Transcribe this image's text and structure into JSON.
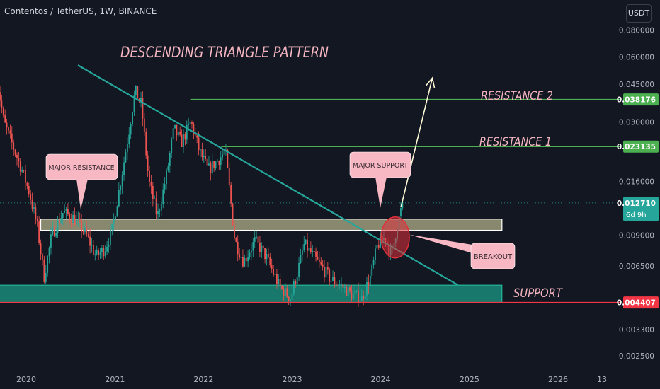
{
  "header": {
    "symbol": "Contentos / TetherUS, 1W, BINANCE",
    "currency_button": "USDT"
  },
  "colors": {
    "background": "#131722",
    "up_candle": "#26a69a",
    "down_candle": "#ef5350",
    "trendline": "#26a69a",
    "resistance_line": "#4caf50",
    "support_line": "#f23645",
    "support_zone": "#1a9a84",
    "resistance_zone": "#e9e6ad",
    "annotation_text": "#f4b6c0",
    "callout_bg": "#f7b7c3",
    "breakout_circle": "#e0303a",
    "projection_arrow": "#fffbd8",
    "last_price_badge": "#26a69a",
    "support_badge": "#f23645"
  },
  "chart_data": {
    "type": "candlestick",
    "title": "DESCENDING TRIANGLE PATTERN",
    "scale": "log",
    "ylim": [
      0.0022,
      0.11
    ],
    "xlim": [
      "2019-09-15",
      "2026-09-15"
    ],
    "y_ticks": [
      "0.080000",
      "0.060000",
      "0.045000",
      "0.030000",
      "0.016000",
      "0.009000",
      "0.006500",
      "0.003300",
      "0.002500"
    ],
    "y_tick_values": [
      0.08,
      0.06,
      0.045,
      0.03,
      0.016,
      0.009,
      0.0065,
      0.0033,
      0.0025
    ],
    "x_ticks": [
      "2020",
      "2021",
      "2022",
      "2023",
      "2024",
      "2025",
      "2026",
      "13"
    ],
    "x_tick_dates": [
      "2020-01-01",
      "2021-01-01",
      "2022-01-01",
      "2023-01-01",
      "2024-01-01",
      "2025-01-01",
      "2026-01-01",
      "2026-07-01"
    ],
    "price_path": [
      {
        "date": "2019-09-01",
        "price": 0.048
      },
      {
        "date": "2019-10-01",
        "price": 0.03
      },
      {
        "date": "2019-11-15",
        "price": 0.022
      },
      {
        "date": "2019-12-15",
        "price": 0.018
      },
      {
        "date": "2020-01-15",
        "price": 0.014
      },
      {
        "date": "2020-02-15",
        "price": 0.01
      },
      {
        "date": "2020-03-15",
        "price": 0.0058
      },
      {
        "date": "2020-04-15",
        "price": 0.009
      },
      {
        "date": "2020-06-01",
        "price": 0.0115
      },
      {
        "date": "2020-07-15",
        "price": 0.0108
      },
      {
        "date": "2020-09-01",
        "price": 0.0092
      },
      {
        "date": "2020-10-15",
        "price": 0.0072
      },
      {
        "date": "2020-11-20",
        "price": 0.0078
      },
      {
        "date": "2020-12-20",
        "price": 0.0095
      },
      {
        "date": "2021-02-01",
        "price": 0.018
      },
      {
        "date": "2021-03-01",
        "price": 0.028
      },
      {
        "date": "2021-03-25",
        "price": 0.042
      },
      {
        "date": "2021-04-20",
        "price": 0.036
      },
      {
        "date": "2021-05-20",
        "price": 0.016
      },
      {
        "date": "2021-06-25",
        "price": 0.011
      },
      {
        "date": "2021-08-01",
        "price": 0.017
      },
      {
        "date": "2021-09-01",
        "price": 0.028
      },
      {
        "date": "2021-10-01",
        "price": 0.024
      },
      {
        "date": "2021-11-10",
        "price": 0.03
      },
      {
        "date": "2021-12-15",
        "price": 0.022
      },
      {
        "date": "2022-01-20",
        "price": 0.018
      },
      {
        "date": "2022-03-01",
        "price": 0.02
      },
      {
        "date": "2022-04-01",
        "price": 0.022
      },
      {
        "date": "2022-05-10",
        "price": 0.0085
      },
      {
        "date": "2022-06-15",
        "price": 0.0068
      },
      {
        "date": "2022-08-01",
        "price": 0.0085
      },
      {
        "date": "2022-09-15",
        "price": 0.0072
      },
      {
        "date": "2022-11-10",
        "price": 0.0052
      },
      {
        "date": "2022-12-25",
        "price": 0.0046
      },
      {
        "date": "2023-01-25",
        "price": 0.0062
      },
      {
        "date": "2023-02-20",
        "price": 0.0082
      },
      {
        "date": "2023-04-15",
        "price": 0.0068
      },
      {
        "date": "2023-06-10",
        "price": 0.0056
      },
      {
        "date": "2023-07-20",
        "price": 0.0053
      },
      {
        "date": "2023-09-01",
        "price": 0.0048
      },
      {
        "date": "2023-10-15",
        "price": 0.0046
      },
      {
        "date": "2023-11-20",
        "price": 0.0058
      },
      {
        "date": "2023-12-20",
        "price": 0.0082
      },
      {
        "date": "2024-01-20",
        "price": 0.0088
      },
      {
        "date": "2024-02-15",
        "price": 0.0072
      },
      {
        "date": "2024-03-05",
        "price": 0.0095
      },
      {
        "date": "2024-03-25",
        "price": 0.0118
      },
      {
        "date": "2024-04-05",
        "price": 0.01271
      }
    ],
    "price_badges": [
      {
        "label": "0.038176",
        "value": 0.038176,
        "kind": "resistance"
      },
      {
        "label": "0.023135",
        "value": 0.023135,
        "kind": "resistance"
      },
      {
        "label": "0.012710",
        "value": 0.01271,
        "kind": "last",
        "sub": "6d 9h"
      },
      {
        "label": "0.004407",
        "value": 0.004407,
        "kind": "support"
      }
    ],
    "levels": [
      {
        "name": "RESISTANCE 2",
        "value": 0.038176,
        "from": "2021-11-10"
      },
      {
        "name": "RESISTANCE 1",
        "value": 0.023135,
        "from": "2022-03-15"
      }
    ],
    "support_line": {
      "value": 0.004407
    },
    "zones": [
      {
        "name": "SUPPORT",
        "low": 0.0044,
        "high": 0.0053,
        "from": "2019-09-01",
        "to": "2025-05-15"
      },
      {
        "name": "major-zone",
        "low": 0.0095,
        "high": 0.0107,
        "from": "2020-03-01",
        "to": "2025-05-15"
      }
    ],
    "trendline": {
      "from_date": "2020-08-01",
      "from_price": 0.055,
      "to_date": "2024-11-15",
      "to_price": 0.0053
    },
    "breakout_circle": {
      "date": "2024-03-01",
      "price": 0.0088
    },
    "projection_arrow": {
      "from_date": "2024-03-25",
      "from_price": 0.0122,
      "to_date": "2024-08-01",
      "to_price": 0.048
    },
    "annotations": {
      "title": "DESCENDING TRIANGLE PATTERN",
      "resistance2": "RESISTANCE 2",
      "resistance1": "RESISTANCE 1",
      "support": "SUPPORT",
      "major_resistance": "MAJOR RESISTANCE",
      "major_support": "MAJOR SUPPORT",
      "breakout": "BREAKOUT"
    }
  }
}
